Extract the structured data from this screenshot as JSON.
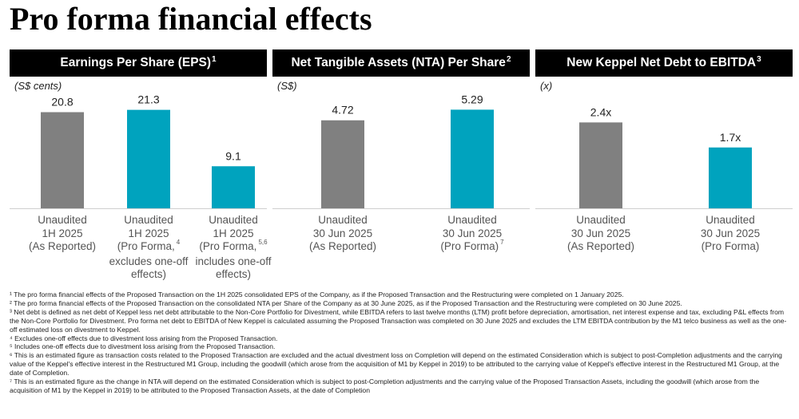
{
  "page": {
    "title": "Pro forma financial effects"
  },
  "colors": {
    "reported": "#808080",
    "pro_forma": "#00A3BE",
    "header_bg": "#000000"
  },
  "chart_data": [
    {
      "type": "bar",
      "title": "Earnings Per Share (EPS)",
      "title_footnote": "1",
      "unit": "(S$ cents)",
      "categories": [
        [
          "Unaudited",
          "1H 2025",
          "(As Reported)"
        ],
        [
          "Unaudited",
          "1H 2025",
          "(Pro Forma,",
          "excludes one-off",
          "effects)"
        ],
        [
          "Unaudited",
          "1H 2025",
          "(Pro Forma,",
          "includes one-off",
          "effects)"
        ]
      ],
      "category_footnotes": [
        "",
        "4",
        "5,6"
      ],
      "values": [
        20.8,
        21.3,
        9.1
      ],
      "value_labels": [
        "20.8",
        "21.3",
        "9.1"
      ],
      "bar_colors": [
        "#808080",
        "#00A3BE",
        "#00A3BE"
      ],
      "ylim": [
        0,
        24
      ]
    },
    {
      "type": "bar",
      "title": "Net Tangible Assets (NTA) Per Share",
      "title_footnote": "2",
      "unit": "(S$)",
      "categories": [
        [
          "Unaudited",
          "30 Jun 2025",
          "(As Reported)"
        ],
        [
          "Unaudited",
          "30 Jun 2025",
          "(Pro Forma)"
        ]
      ],
      "category_footnotes": [
        "",
        "7"
      ],
      "values": [
        4.72,
        5.29
      ],
      "value_labels": [
        "4.72",
        "5.29"
      ],
      "bar_colors": [
        "#808080",
        "#00A3BE"
      ],
      "ylim": [
        0,
        5.95
      ]
    },
    {
      "type": "bar",
      "title": "New Keppel Net Debt to EBITDA",
      "title_footnote": "3",
      "unit": "(x)",
      "categories": [
        [
          "Unaudited",
          "30 Jun 2025",
          "(As Reported)"
        ],
        [
          "Unaudited",
          "30 Jun 2025",
          "(Pro Forma)"
        ]
      ],
      "category_footnotes": [
        "",
        ""
      ],
      "values": [
        2.4,
        1.7
      ],
      "value_labels": [
        "2.4x",
        "1.7x"
      ],
      "bar_colors": [
        "#808080",
        "#00A3BE"
      ],
      "ylim": [
        0,
        3.1
      ]
    }
  ],
  "footnotes": [
    "¹ The pro forma financial effects of the Proposed Transaction on the 1H 2025 consolidated EPS of the Company, as if the Proposed Transaction and the Restructuring were completed on 1 January 2025.",
    "² The pro forma financial effects of the Proposed Transaction on the consolidated NTA per Share of the Company as at 30 June 2025, as if the Proposed Transaction and the Restructuring were completed on 30 June 2025.",
    "³ Net debt is defined as net debt of Keppel less net debt attributable to the Non-Core Portfolio for Divestment, while EBITDA refers to last twelve months (LTM) profit before depreciation, amortisation, net interest expense and tax, excluding P&L effects from the Non-Core Portfolio for Divestment. Pro forma net debt to EBITDA of New Keppel is calculated assuming the Proposed Transaction was completed on 30 June 2025 and excludes the LTM EBITDA contribution by the M1 telco business as well as the one-off estimated loss on divestment to Keppel.",
    "⁴ Excludes one-off effects due to divestment loss arising from the Proposed Transaction.",
    "⁵ Includes one-off effects due to divestment loss arising from the Proposed Transaction.",
    "⁶ This is an estimated figure as transaction costs related to the Proposed Transaction are excluded and the actual divestment loss on Completion will depend on the estimated Consideration which is subject to post-Completion adjustments and the carrying value of the Keppel's effective interest in the Restructured M1 Group, including the goodwill (which arose from the acquisition of M1 by Keppel in 2019) to be attributed to the carrying value of Keppel's effective interest in the Restructured M1 Group, at the date of Completion.",
    "⁷ This is an estimated figure as the change in NTA will depend on the estimated Consideration which is subject to post-Completion adjustments and the carrying value of the Proposed Transaction Assets, including the goodwill (which arose from the acquisition of M1 by the Keppel in 2019) to be attributed to the Proposed Transaction Assets, at the date of Completion"
  ]
}
